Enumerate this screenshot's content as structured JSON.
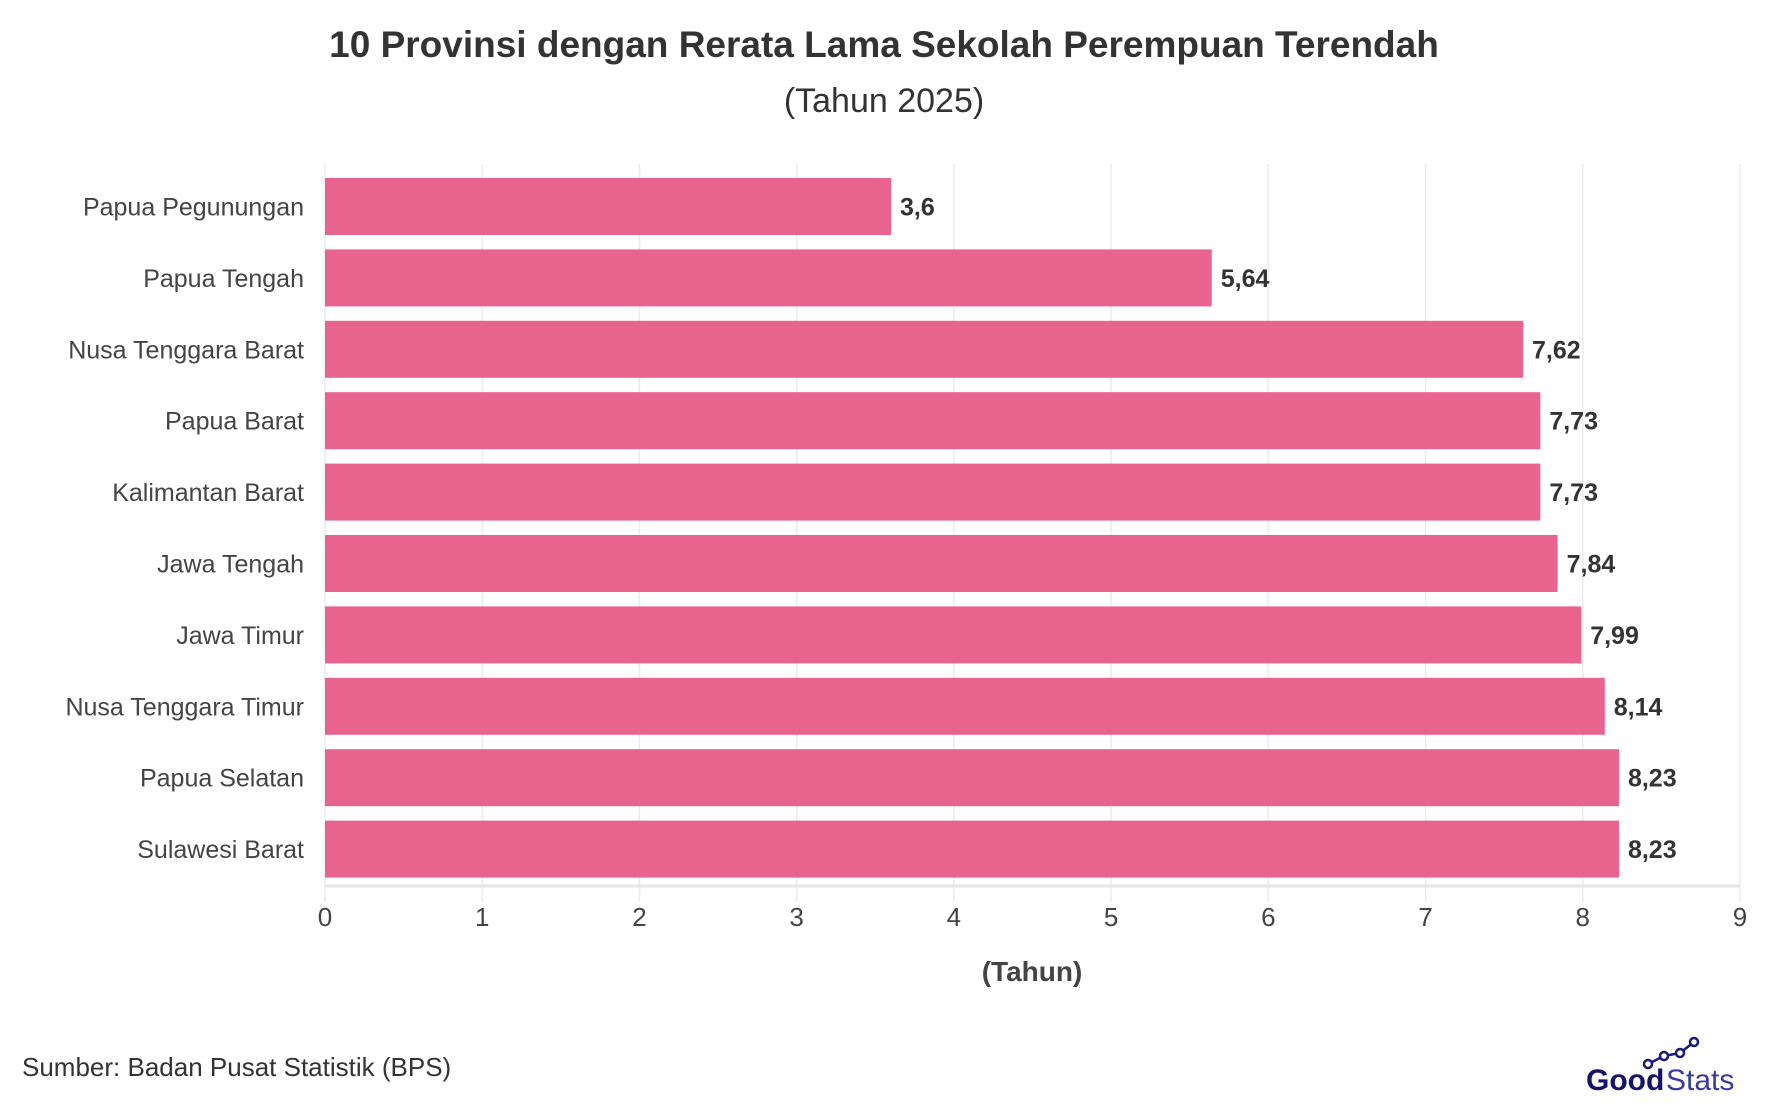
{
  "chart_data": {
    "type": "bar",
    "orientation": "horizontal",
    "title": "10 Provinsi dengan Rerata Lama Sekolah Perempuan Terendah",
    "subtitle": "(Tahun 2025)",
    "xlabel": "(Tahun)",
    "ylabel": "",
    "categories": [
      "Papua Pegunungan",
      "Papua Tengah",
      "Nusa Tenggara Barat",
      "Papua Barat",
      "Kalimantan Barat",
      "Jawa Tengah",
      "Jawa Timur",
      "Nusa Tenggara Timur",
      "Papua Selatan",
      "Sulawesi Barat"
    ],
    "values": [
      3.6,
      5.64,
      7.62,
      7.73,
      7.73,
      7.84,
      7.99,
      8.14,
      8.23,
      8.23
    ],
    "data_labels": [
      "3,6",
      "5,64",
      "7,62",
      "7,73",
      "7,73",
      "7,84",
      "7,99",
      "8,14",
      "8,23",
      "8,23"
    ],
    "xlim": [
      0,
      9
    ],
    "xticks": [
      0,
      1,
      2,
      3,
      4,
      5,
      6,
      7,
      8,
      9
    ],
    "grid": true,
    "bar_color": "#E8638D"
  },
  "footer": {
    "source": "Sumber: Badan Pusat Statistik (BPS)",
    "logo_text": "GoodStats"
  }
}
